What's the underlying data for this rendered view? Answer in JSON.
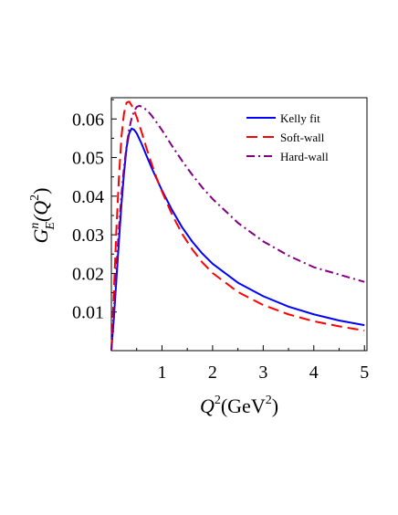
{
  "chart_data": {
    "type": "line",
    "title": "",
    "xlabel": {
      "main": "Q",
      "sup1": "2",
      "unit": "(GeV",
      "sup2": "2",
      "close": ")"
    },
    "ylabel": {
      "G": "G",
      "sub": "E",
      "sup": "n",
      "open": "(Q",
      "sup2": "2",
      "close": ")"
    },
    "xlim": [
      0,
      5.05
    ],
    "ylim": [
      0,
      0.0655
    ],
    "xticks": [
      1,
      2,
      3,
      4,
      5
    ],
    "xtick_labels": [
      "1",
      "2",
      "3",
      "4",
      "5"
    ],
    "yticks": [
      0.01,
      0.02,
      0.03,
      0.04,
      0.05,
      0.06
    ],
    "ytick_labels": [
      "0.01",
      "0.02",
      "0.03",
      "0.04",
      "0.05",
      "0.06"
    ],
    "grid": false,
    "legend_position": "top-right",
    "series": [
      {
        "name": "Kelly fit",
        "color": "#0000ff",
        "style": "solid",
        "x": [
          0,
          0.02,
          0.05,
          0.1,
          0.15,
          0.2,
          0.25,
          0.3,
          0.35,
          0.4,
          0.45,
          0.5,
          0.6,
          0.7,
          0.8,
          0.9,
          1.0,
          1.2,
          1.4,
          1.6,
          1.8,
          2.0,
          2.5,
          3.0,
          3.5,
          4.0,
          4.5,
          5.0
        ],
        "y": [
          0,
          0.0035,
          0.0085,
          0.0185,
          0.0285,
          0.038,
          0.046,
          0.0525,
          0.0562,
          0.0575,
          0.0572,
          0.0563,
          0.0535,
          0.0503,
          0.0472,
          0.0443,
          0.0415,
          0.0364,
          0.0319,
          0.0282,
          0.0251,
          0.0225,
          0.0176,
          0.0141,
          0.0114,
          0.0094,
          0.0078,
          0.0066
        ]
      },
      {
        "name": "Soft-wall",
        "color": "#ff0000",
        "style": "dashed",
        "x": [
          0,
          0.02,
          0.05,
          0.1,
          0.15,
          0.2,
          0.25,
          0.3,
          0.35,
          0.4,
          0.45,
          0.5,
          0.6,
          0.7,
          0.8,
          0.9,
          1.0,
          1.2,
          1.4,
          1.6,
          1.8,
          2.0,
          2.5,
          3.0,
          3.5,
          4.0,
          4.5,
          5.0
        ],
        "y": [
          0,
          0.0062,
          0.0155,
          0.0315,
          0.045,
          0.0555,
          0.0615,
          0.0642,
          0.0645,
          0.0635,
          0.0622,
          0.0605,
          0.0565,
          0.0522,
          0.0482,
          0.0445,
          0.0412,
          0.0352,
          0.0302,
          0.0262,
          0.0228,
          0.0201,
          0.0152,
          0.0118,
          0.0094,
          0.0076,
          0.0063,
          0.0052
        ]
      },
      {
        "name": "Hard-wall",
        "color": "#800080",
        "style": "dashdot",
        "x": [
          0,
          0.02,
          0.05,
          0.1,
          0.15,
          0.2,
          0.25,
          0.3,
          0.35,
          0.4,
          0.45,
          0.5,
          0.55,
          0.6,
          0.7,
          0.8,
          0.9,
          1.0,
          1.2,
          1.4,
          1.6,
          1.8,
          2.0,
          2.5,
          3.0,
          3.5,
          4.0,
          4.5,
          5.0
        ],
        "y": [
          0,
          0.0042,
          0.0105,
          0.0215,
          0.0318,
          0.0405,
          0.0475,
          0.053,
          0.0572,
          0.0602,
          0.062,
          0.0631,
          0.0634,
          0.0632,
          0.0623,
          0.0608,
          0.059,
          0.0571,
          0.053,
          0.0491,
          0.0455,
          0.0422,
          0.0393,
          0.0331,
          0.0283,
          0.0246,
          0.0216,
          0.0197,
          0.0178
        ]
      }
    ]
  }
}
